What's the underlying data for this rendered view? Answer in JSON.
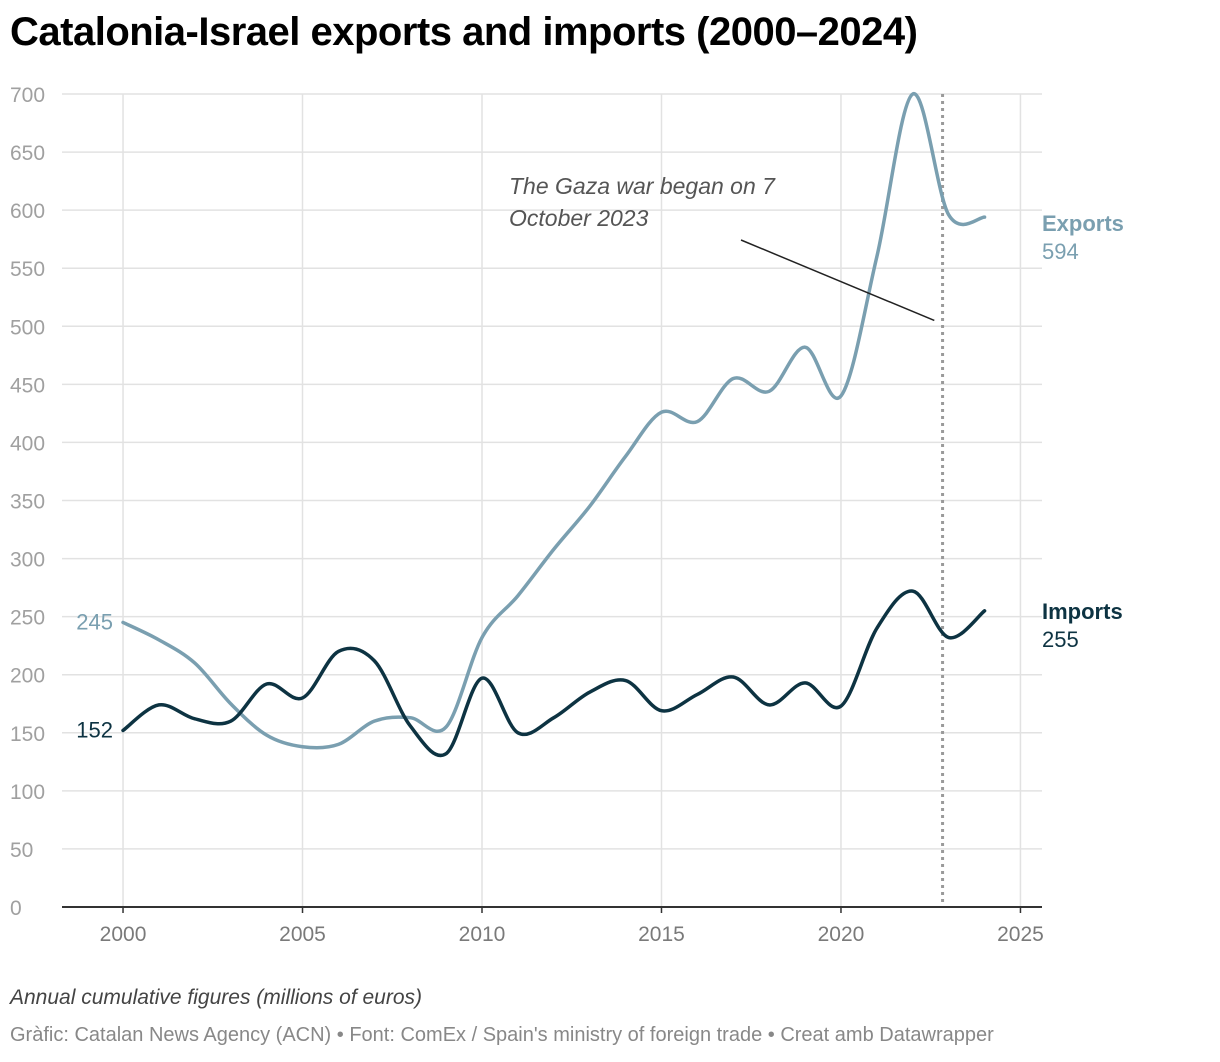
{
  "title": "Catalonia-Israel exports and imports (2000–2024)",
  "footer": {
    "note": "Annual cumulative figures (millions of euros)",
    "source": "Gràfic: Catalan News Agency (ACN) • Font: ComEx / Spain's ministry of foreign trade • Creat amb Datawrapper"
  },
  "chart_data": {
    "type": "line",
    "title": "Catalonia-Israel exports and imports (2000–2024)",
    "xlabel": "",
    "ylabel": "",
    "xlim": [
      1998.3,
      2025.6
    ],
    "ylim": [
      0,
      700
    ],
    "x_ticks": [
      2000,
      2005,
      2010,
      2015,
      2020,
      2025
    ],
    "y_ticks": [
      0,
      50,
      100,
      150,
      200,
      250,
      300,
      350,
      400,
      450,
      500,
      550,
      600,
      650,
      700
    ],
    "grid": true,
    "legend": "direct labels at line ends",
    "x": [
      2000,
      2001,
      2002,
      2003,
      2004,
      2005,
      2006,
      2007,
      2008,
      2009,
      2010,
      2011,
      2012,
      2013,
      2014,
      2015,
      2016,
      2017,
      2018,
      2019,
      2020,
      2021,
      2022,
      2023,
      2024
    ],
    "series": [
      {
        "name": "Exports",
        "color": "#7a9fb0",
        "values": [
          245,
          230,
          210,
          175,
          148,
          138,
          140,
          160,
          163,
          155,
          232,
          268,
          308,
          345,
          388,
          426,
          418,
          455,
          444,
          482,
          440,
          560,
          700,
          596,
          594
        ],
        "start_label": "245",
        "end_label": "594"
      },
      {
        "name": "Imports",
        "color": "#0d3342",
        "values": [
          152,
          174,
          162,
          160,
          192,
          180,
          220,
          212,
          156,
          132,
          197,
          150,
          163,
          185,
          195,
          169,
          183,
          198,
          174,
          193,
          173,
          240,
          272,
          232,
          255
        ],
        "start_label": "152",
        "end_label": "255"
      }
    ],
    "reference_lines": [
      {
        "axis": "x",
        "value": 2022.83,
        "style": "dotted",
        "color": "#9a9a9a"
      }
    ],
    "annotations": [
      {
        "text_line1": "The Gaza war began on 7",
        "text_line2": "October 2023",
        "points_to_x": 2022.6,
        "points_to_y": 505
      }
    ]
  }
}
